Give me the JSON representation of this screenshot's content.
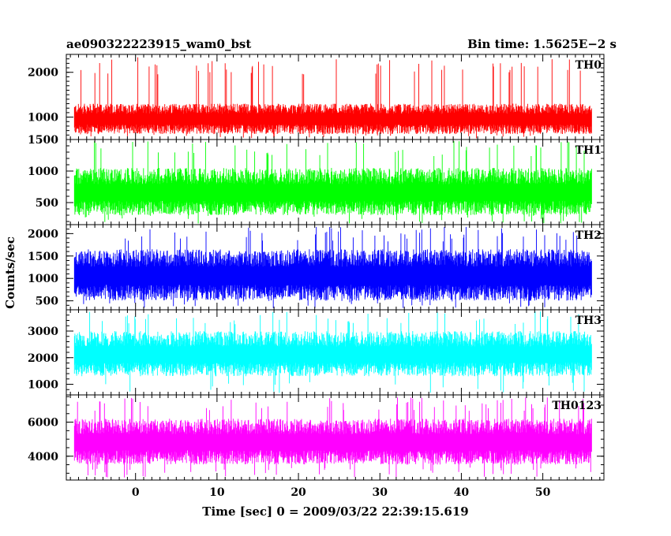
{
  "header": {
    "title": "ae090322223915_wam0_bst",
    "bin_time": "Bin time: 1.5625E−2 s"
  },
  "chart_data": {
    "type": "line",
    "ylabel": "Counts/sec",
    "xlabel": "Time [sec] 0 = 2009/03/22 22:39:15.619",
    "xlim": [
      -8.5,
      57.5
    ],
    "x_ticks": [
      0,
      10,
      20,
      30,
      40,
      50
    ],
    "x_start": -7.5,
    "x_end": 56.0,
    "panels": [
      {
        "name": "TH0",
        "color": "#ff0000",
        "ylim": [
          500,
          2400
        ],
        "y_ticks": [
          1000,
          2000
        ],
        "y_minor_step": 100,
        "baseline": 950,
        "band_low": 620,
        "band_high": 1300,
        "spike_max": 2350,
        "spike_min": 520
      },
      {
        "name": "TH1",
        "color": "#00ff00",
        "ylim": [
          150,
          1500
        ],
        "y_ticks": [
          500,
          1000,
          1500
        ],
        "y_minor_step": 100,
        "baseline": 650,
        "band_low": 300,
        "band_high": 1050,
        "spike_max": 1480,
        "spike_min": 160
      },
      {
        "name": "TH2",
        "color": "#0000ff",
        "ylim": [
          300,
          2200
        ],
        "y_ticks": [
          500,
          1000,
          1500,
          2000
        ],
        "y_minor_step": 100,
        "baseline": 1050,
        "band_low": 500,
        "band_high": 1650,
        "spike_max": 2150,
        "spike_min": 310
      },
      {
        "name": "TH3",
        "color": "#00ffff",
        "ylim": [
          600,
          3800
        ],
        "y_ticks": [
          1000,
          2000,
          3000
        ],
        "y_minor_step": 200,
        "baseline": 2100,
        "band_low": 1300,
        "band_high": 3000,
        "spike_max": 3750,
        "spike_min": 650
      },
      {
        "name": "TH0123",
        "color": "#ff00ff",
        "ylim": [
          2600,
          7600
        ],
        "y_ticks": [
          4000,
          6000
        ],
        "y_minor_step": 500,
        "baseline": 4800,
        "band_low": 3500,
        "band_high": 6200,
        "spike_max": 7450,
        "spike_min": 2700
      }
    ]
  }
}
